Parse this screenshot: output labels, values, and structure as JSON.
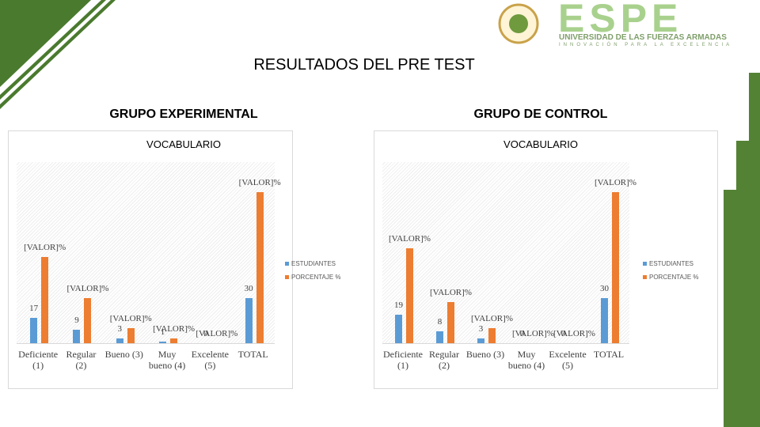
{
  "slide": {
    "title": "RESULTADOS DEL PRE TEST",
    "logo_text": "ESPE",
    "logo_subtitle": "UNIVERSIDAD DE LAS FUERZAS ARMADAS",
    "logo_tagline": "INNOVACIÓN PARA LA EXCELENCIA"
  },
  "chart_data": [
    {
      "type": "bar",
      "heading": "GRUPO EXPERIMENTAL",
      "title": "VOCABULARIO",
      "categories": [
        "Deficiente (1)",
        "Regular (2)",
        "Bueno (3)",
        "Muy bueno (4)",
        "Excelente (5)",
        "TOTAL"
      ],
      "series": [
        {
          "name": "ESTUDIANTES",
          "color": "#5b9bd5",
          "values": [
            17,
            9,
            3,
            1,
            0,
            30
          ]
        },
        {
          "name": "PORCENTAJE %",
          "color": "#ed7d31",
          "values": [
            57,
            30,
            10,
            3,
            0,
            100
          ],
          "value_labels": [
            "[VALOR]%",
            "[VALOR]%",
            "[VALOR]%",
            "[VALOR]%",
            "[VALOR]%",
            "[VALOR]%"
          ]
        }
      ],
      "ylim": [
        0,
        100
      ],
      "legend": "right"
    },
    {
      "type": "bar",
      "heading": "GRUPO DE CONTROL",
      "title": "VOCABULARIO",
      "categories": [
        "Deficiente (1)",
        "Regular (2)",
        "Bueno (3)",
        "Muy bueno (4)",
        "Excelente (5)",
        "TOTAL"
      ],
      "series": [
        {
          "name": "ESTUDIANTES",
          "color": "#5b9bd5",
          "values": [
            19,
            8,
            3,
            0,
            0,
            30
          ]
        },
        {
          "name": "PORCENTAJE %",
          "color": "#ed7d31",
          "values": [
            63,
            27,
            10,
            0,
            0,
            100
          ],
          "value_labels": [
            "[VALOR]%",
            "[VALOR]%",
            "[VALOR]%",
            "[VALOR]%",
            "[VALOR]%",
            "[VALOR]%"
          ]
        }
      ],
      "ylim": [
        0,
        100
      ],
      "legend": "right"
    }
  ]
}
